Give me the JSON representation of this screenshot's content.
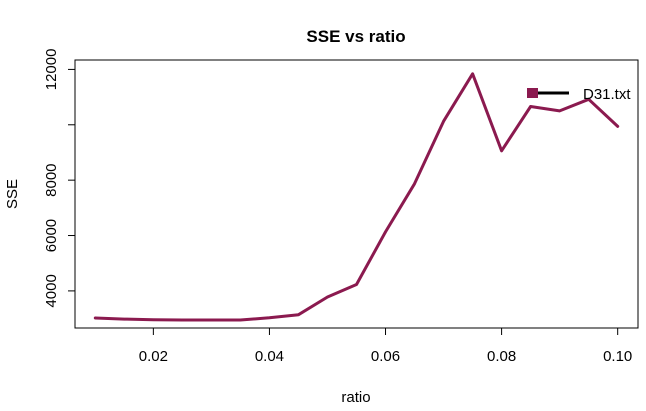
{
  "chart_data": {
    "type": "line",
    "title": "SSE vs ratio",
    "xlabel": "ratio",
    "ylabel": "SSE",
    "xlim": [
      0.0065,
      0.1035
    ],
    "ylim": [
      2660,
      12340
    ],
    "x_ticks": [
      0.02,
      0.04,
      0.06,
      0.08,
      0.1
    ],
    "x_tick_labels": [
      "0.02",
      "0.04",
      "0.06",
      "0.08",
      "0.10"
    ],
    "y_ticks": [
      4000,
      6000,
      8000,
      12000
    ],
    "y_tick_labels": [
      "4000",
      "6000",
      "8000",
      "12000"
    ],
    "grid": false,
    "legend_position": "top-right",
    "series": [
      {
        "name": "D31.txt",
        "color": "#8B1A4F",
        "x": [
          0.01,
          0.015,
          0.02,
          0.025,
          0.03,
          0.035,
          0.04,
          0.045,
          0.05,
          0.055,
          0.06,
          0.065,
          0.07,
          0.075,
          0.08,
          0.085,
          0.09,
          0.095,
          0.1
        ],
        "y": [
          3020,
          2980,
          2960,
          2950,
          2950,
          2950,
          3030,
          3140,
          3780,
          4230,
          6130,
          7870,
          10130,
          11840,
          9060,
          10660,
          10500,
          10920,
          9940
        ]
      }
    ],
    "legend_line_color": "#000000"
  }
}
